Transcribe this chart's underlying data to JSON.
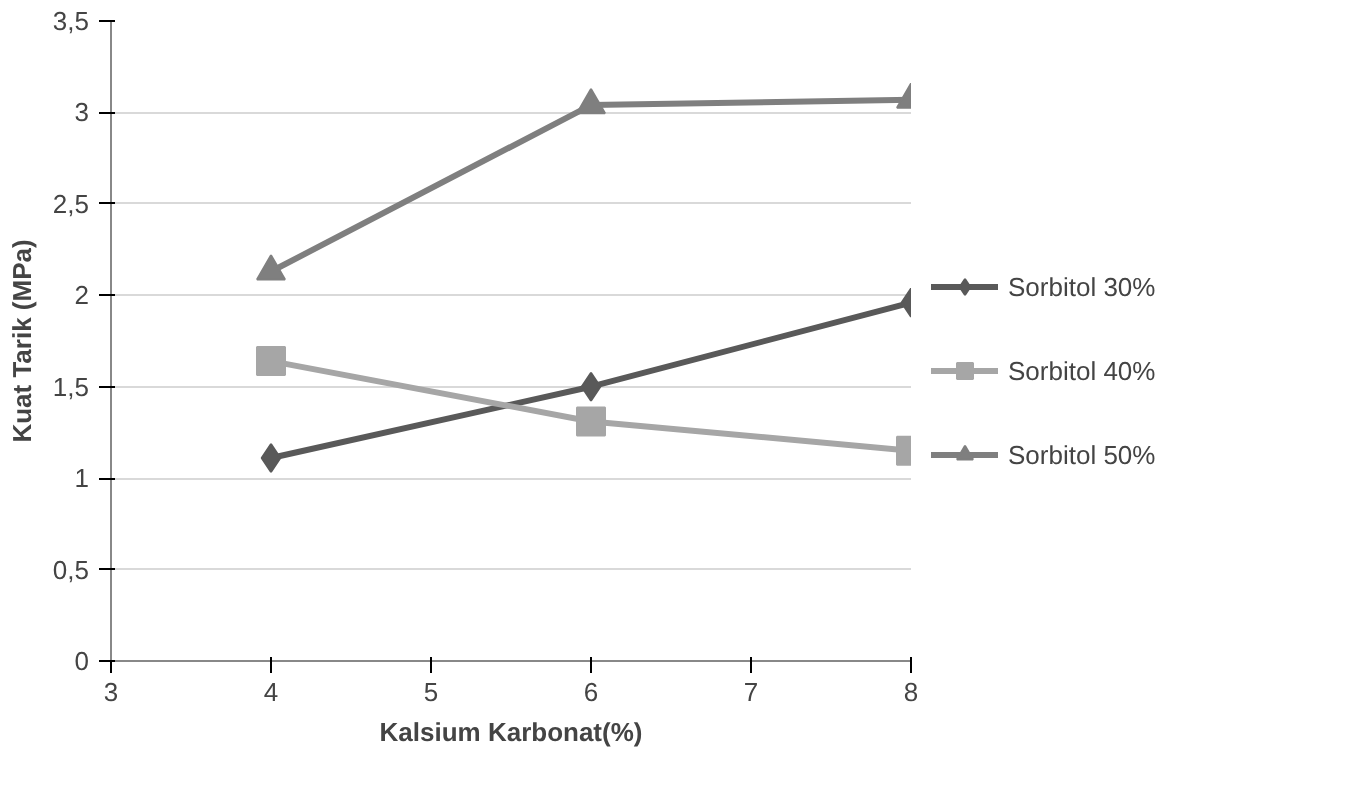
{
  "chart_data": {
    "type": "line",
    "xlabel": "Kalsium Karbonat(%)",
    "ylabel": "Kuat Tarik (MPa)",
    "x": [
      4,
      6,
      8
    ],
    "series": [
      {
        "name": "Sorbitol 30%",
        "color": "#595959",
        "marker": "diamond",
        "values": [
          1.11,
          1.5,
          1.96
        ]
      },
      {
        "name": "Sorbitol 40%",
        "color": "#a6a6a6",
        "marker": "square",
        "values": [
          1.64,
          1.31,
          1.15
        ]
      },
      {
        "name": "Sorbitol 50%",
        "color": "#7f7f7f",
        "marker": "triangle",
        "values": [
          2.13,
          3.04,
          3.07
        ]
      }
    ],
    "xlim": [
      3,
      8
    ],
    "xticks": [
      3,
      4,
      5,
      6,
      7,
      8
    ],
    "ylim": [
      0,
      3.5
    ],
    "yticks": [
      0,
      {
        "value": 0.5,
        "label": "0,5"
      },
      1,
      {
        "value": 1.5,
        "label": "1,5"
      },
      2,
      {
        "value": 2.5,
        "label": "2,5"
      },
      3,
      {
        "value": 3.5,
        "label": "3,5"
      }
    ],
    "grid": "y",
    "legend": "right"
  }
}
